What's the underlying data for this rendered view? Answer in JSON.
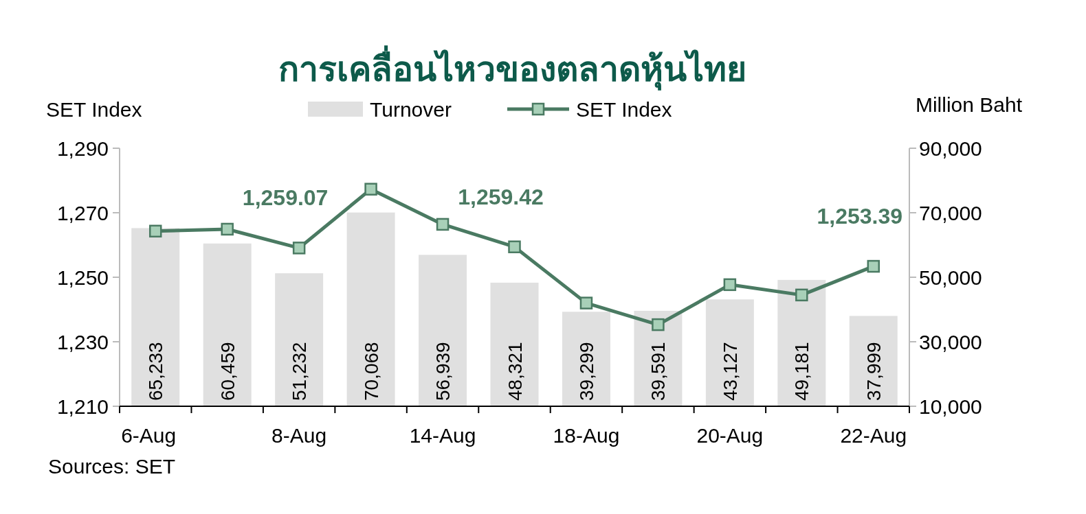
{
  "chart_data": {
    "type": "bar",
    "title": "การเคลื่อนไหวของตลาดหุ้นไทย",
    "ylabel": "SET Index",
    "y2label": "Million Baht",
    "categories": [
      "6-Aug",
      null,
      "8-Aug",
      null,
      "14-Aug",
      null,
      "18-Aug",
      null,
      "20-Aug",
      null,
      "22-Aug"
    ],
    "series": [
      {
        "name": "Turnover",
        "axis": "y2",
        "color": "#e0e0e0",
        "values": [
          65233,
          60459,
          51232,
          70068,
          56939,
          48321,
          39299,
          39591,
          43127,
          49181,
          37999
        ],
        "value_labels": [
          "65,233",
          "60,459",
          "51,232",
          "70,068",
          "56,939",
          "48,321",
          "39,299",
          "39,591",
          "43,127",
          "49,181",
          "37,999"
        ]
      },
      {
        "name": "SET Index",
        "type": "line",
        "axis": "y",
        "color": "#4a7a62",
        "marker": "square",
        "values": [
          1264.3,
          1264.9,
          1259.07,
          1277.3,
          1266.4,
          1259.42,
          1242.0,
          1235.3,
          1247.7,
          1244.5,
          1253.39
        ],
        "value_labels": [
          null,
          null,
          "1,259.07",
          null,
          null,
          "1,259.42",
          null,
          null,
          null,
          null,
          "1,253.39"
        ]
      }
    ],
    "ylim": [
      1210,
      1290
    ],
    "yticks": [
      {
        "value": 1210,
        "label": "1,210"
      },
      {
        "value": 1230,
        "label": "1,230"
      },
      {
        "value": 1250,
        "label": "1,250"
      },
      {
        "value": 1270,
        "label": "1,270"
      },
      {
        "value": 1290,
        "label": "1,290"
      }
    ],
    "y2lim": [
      10000,
      90000
    ],
    "y2ticks": [
      {
        "value": 10000,
        "label": "10,000"
      },
      {
        "value": 30000,
        "label": "30,000"
      },
      {
        "value": 50000,
        "label": "50,000"
      },
      {
        "value": 70000,
        "label": "70,000"
      },
      {
        "value": 90000,
        "label": "90,000"
      }
    ],
    "legend": "top",
    "grid": false,
    "annotations": [
      "Sources: SET"
    ]
  }
}
